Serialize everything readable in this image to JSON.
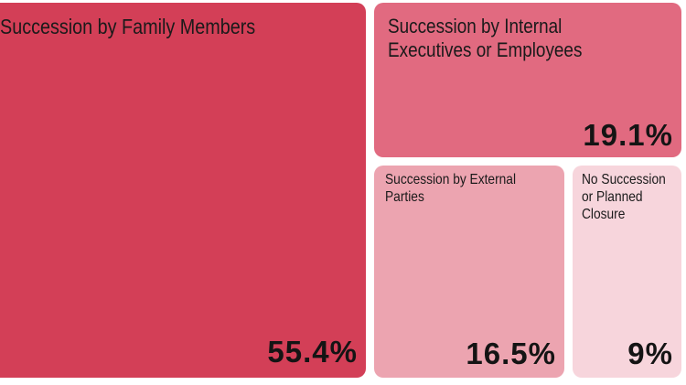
{
  "chart_data": {
    "type": "treemap",
    "title": "",
    "unit": "%",
    "items": [
      {
        "id": "family",
        "label_lines": [
          "Succession by Family Members"
        ],
        "value": 55.4,
        "value_text": "55.4%",
        "color": "#d33f57"
      },
      {
        "id": "internal",
        "label_lines": [
          "Succession by Internal",
          "Executives or Employees"
        ],
        "value": 19.1,
        "value_text": "19.1%",
        "color": "#e16a80"
      },
      {
        "id": "external",
        "label_lines": [
          "Succession by External",
          "Parties"
        ],
        "value": 16.5,
        "value_text": "16.5%",
        "color": "#eca4b0"
      },
      {
        "id": "closure",
        "label_lines": [
          "No Succession",
          "or Planned",
          "Closure"
        ],
        "value": 9,
        "value_text": "9%",
        "color": "#f7d5dc"
      }
    ]
  }
}
